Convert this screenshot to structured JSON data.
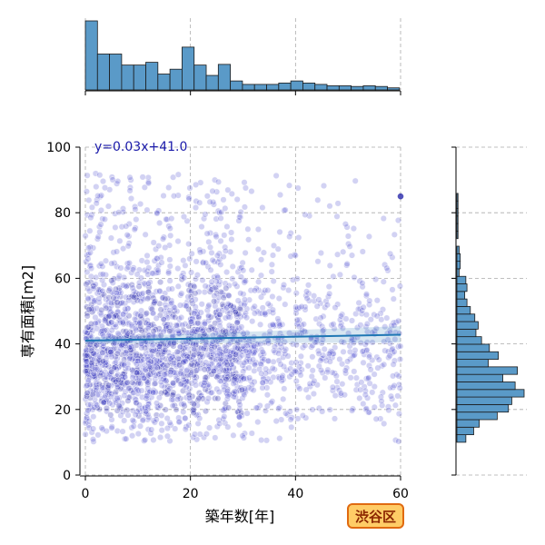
{
  "chart_data": {
    "type": "scatter",
    "xlabel": "築年数[年]",
    "ylabel": "専有面積[m2]",
    "xlim": [
      0,
      60
    ],
    "ylim": [
      0,
      100
    ],
    "x_ticks": [
      "0",
      "20",
      "40",
      "60"
    ],
    "y_ticks": [
      "0",
      "20",
      "40",
      "60",
      "80",
      "100"
    ],
    "grid": true,
    "annotation": "y=0.03x+41.0",
    "badge": "渋谷区",
    "regression": {
      "slope": 0.03,
      "intercept": 41.0,
      "x_range": [
        0,
        60
      ]
    },
    "scatter_summary": {
      "approx_points": 2400,
      "x_range": [
        0,
        60
      ],
      "y_range": [
        10,
        95
      ],
      "dense_region": {
        "x": [
          0,
          30
        ],
        "y": [
          15,
          70
        ]
      }
    },
    "x_histogram": {
      "bin_edges_start": 0,
      "bin_width": 2.3,
      "counts": [
        100,
        52,
        52,
        36,
        36,
        40,
        23,
        30,
        62,
        36,
        21,
        37,
        13,
        8,
        8,
        8,
        10,
        13,
        10,
        8,
        6,
        6,
        5,
        6,
        5,
        3
      ]
    },
    "y_histogram": {
      "bin_edges_start": 10,
      "bin_width": 2.3,
      "counts": [
        8,
        15,
        20,
        36,
        46,
        49,
        60,
        52,
        41,
        54,
        28,
        37,
        29,
        22,
        17,
        19,
        16,
        12,
        9,
        7,
        9,
        8,
        2,
        3,
        3,
        2,
        0,
        1,
        1,
        1,
        1,
        1,
        1
      ]
    },
    "colors": {
      "point_fill": "#4a4ad0",
      "point_dark": "#0a0aa0",
      "regression_line": "#1f77b4",
      "histogram_bar": "#5a9ac8",
      "badge_fill": "#ffcc66",
      "badge_border": "#e06a10",
      "grid": "#aaaaaa"
    }
  }
}
